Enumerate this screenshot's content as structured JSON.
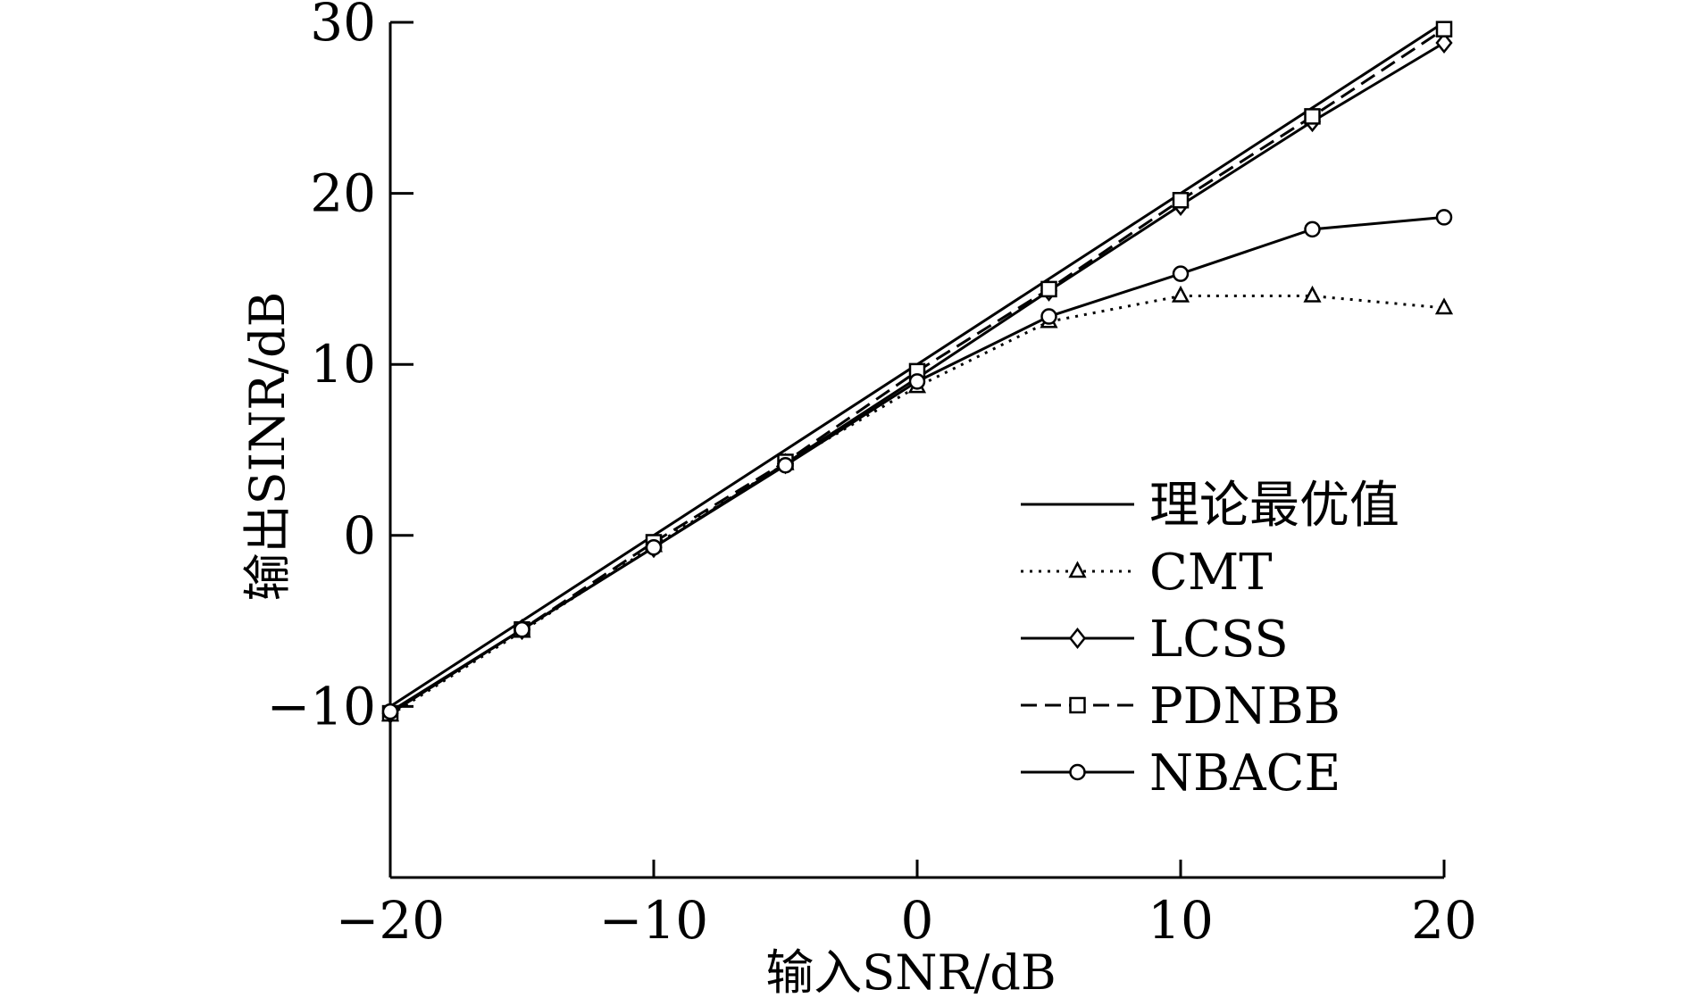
{
  "chart_data": {
    "type": "line",
    "title": "",
    "xlabel": "输入SNR/dB",
    "ylabel": "输出SINR/dB",
    "xlim": [
      -20,
      20
    ],
    "ylim": [
      -20,
      30
    ],
    "xticks": [
      -20,
      -10,
      0,
      10,
      20
    ],
    "yticks": [
      -10,
      0,
      10,
      20,
      30
    ],
    "xtick_labels": [
      "−20",
      "−10",
      "0",
      "10",
      "20"
    ],
    "ytick_labels": [
      "−10",
      "0",
      "10",
      "20",
      "30"
    ],
    "grid": false,
    "legend_position": "right",
    "x": [
      -20,
      -15,
      -10,
      -5,
      0,
      5,
      10,
      15,
      20
    ],
    "series": [
      {
        "name": "理论最优值",
        "marker": "none",
        "line": "solid",
        "values": [
          -10,
          -5,
          0,
          5,
          10,
          15,
          20,
          25,
          30
        ]
      },
      {
        "name": "CMT",
        "marker": "triangle",
        "line": "dotted",
        "values": [
          -10.5,
          -5.6,
          -0.6,
          4.2,
          8.7,
          12.5,
          14.0,
          14.0,
          13.3
        ]
      },
      {
        "name": "LCSS",
        "marker": "diamond",
        "line": "solid",
        "values": [
          -10.4,
          -5.5,
          -0.7,
          4.2,
          9.2,
          14.3,
          19.3,
          24.2,
          28.8
        ]
      },
      {
        "name": "PDNBB",
        "marker": "square",
        "line": "dashed",
        "values": [
          -10.4,
          -5.5,
          -0.4,
          4.3,
          9.6,
          14.4,
          19.6,
          24.5,
          29.6
        ]
      },
      {
        "name": "NBACE",
        "marker": "circle",
        "line": "solid",
        "values": [
          -10.3,
          -5.5,
          -0.7,
          4.1,
          9.0,
          12.8,
          15.3,
          17.9,
          18.6
        ]
      }
    ]
  }
}
